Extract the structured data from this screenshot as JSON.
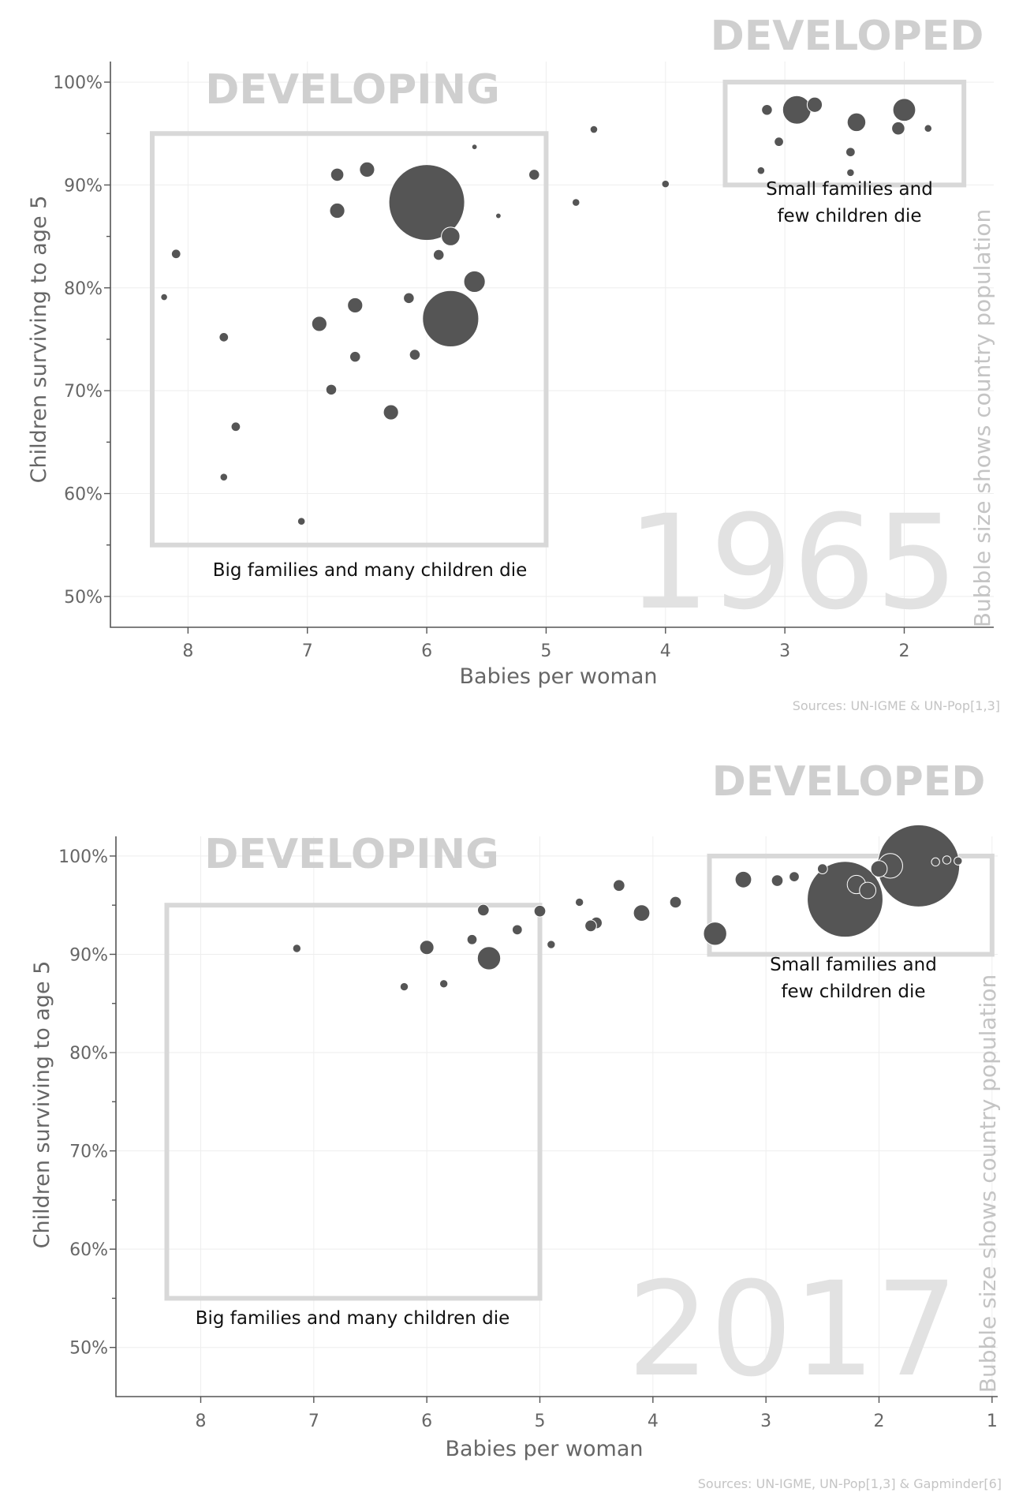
{
  "charts": [
    {
      "year_label": "1965",
      "sources": "Sources: UN-IGME & UN-Pop[1,3]",
      "side_note": "Bubble size shows country population",
      "x_ticks": [
        {
          "value": 8,
          "label": "8"
        },
        {
          "value": 7,
          "label": "7"
        },
        {
          "value": 6,
          "label": "6"
        },
        {
          "value": 5,
          "label": "5"
        },
        {
          "value": 4,
          "label": "4"
        },
        {
          "value": 3,
          "label": "3"
        },
        {
          "value": 2,
          "label": "2"
        }
      ],
      "y_ticks": [
        {
          "value": 50,
          "label": "50%"
        },
        {
          "value": 60,
          "label": "60%"
        },
        {
          "value": 70,
          "label": "70%"
        },
        {
          "value": 80,
          "label": "80%"
        },
        {
          "value": 90,
          "label": "90%"
        },
        {
          "value": 100,
          "label": "100%"
        }
      ],
      "developing": {
        "label": "DEVELOPING",
        "note": "Big families and many children die"
      },
      "developed": {
        "label": "DEVELOPED",
        "note_line1": "Small families and",
        "note_line2": "few children die"
      }
    },
    {
      "year_label": "2017",
      "sources": "Sources: UN-IGME, UN-Pop[1,3] & Gapminder[6]",
      "side_note": "Bubble size shows country population",
      "x_ticks": [
        {
          "value": 8,
          "label": "8"
        },
        {
          "value": 7,
          "label": "7"
        },
        {
          "value": 6,
          "label": "6"
        },
        {
          "value": 5,
          "label": "5"
        },
        {
          "value": 4,
          "label": "4"
        },
        {
          "value": 3,
          "label": "3"
        },
        {
          "value": 2,
          "label": "2"
        },
        {
          "value": 1,
          "label": "1"
        }
      ],
      "y_ticks": [
        {
          "value": 50,
          "label": "50%"
        },
        {
          "value": 60,
          "label": "60%"
        },
        {
          "value": 70,
          "label": "70%"
        },
        {
          "value": 80,
          "label": "80%"
        },
        {
          "value": 90,
          "label": "90%"
        },
        {
          "value": 100,
          "label": "100%"
        }
      ],
      "developing": {
        "label": "DEVELOPING",
        "note": "Big families and many children die"
      },
      "developed": {
        "label": "DEVELOPED",
        "note_line1": "Small families and",
        "note_line2": "few children die"
      }
    }
  ],
  "chart_data": [
    {
      "type": "scatter",
      "title": "1965",
      "xlabel": "Babies per woman",
      "ylabel": "Children surviving to age 5",
      "xlim": [
        8.65,
        1.25
      ],
      "ylim": [
        47,
        102
      ],
      "x_reversed": true,
      "size_encodes": "country population",
      "grid": true,
      "regions": [
        {
          "label": "DEVELOPING",
          "x": [
            8.3,
            5.0
          ],
          "y": [
            55,
            95
          ],
          "note": "Big families and many children die"
        },
        {
          "label": "DEVELOPED",
          "x": [
            3.5,
            1.5
          ],
          "y": [
            90,
            100
          ],
          "note": "Small families and few children die"
        }
      ],
      "points": [
        {
          "x": 6.0,
          "y": 88.3,
          "size": 100
        },
        {
          "x": 5.8,
          "y": 77.0,
          "size": 55
        },
        {
          "x": 2.9,
          "y": 97.3,
          "size": 14
        },
        {
          "x": 2.0,
          "y": 97.3,
          "size": 9
        },
        {
          "x": 2.4,
          "y": 96.1,
          "size": 6
        },
        {
          "x": 5.6,
          "y": 80.6,
          "size": 8
        },
        {
          "x": 5.8,
          "y": 85.0,
          "size": 6
        },
        {
          "x": 6.5,
          "y": 91.5,
          "size": 4
        },
        {
          "x": 6.75,
          "y": 87.5,
          "size": 4
        },
        {
          "x": 6.75,
          "y": 91.0,
          "size": 3
        },
        {
          "x": 6.6,
          "y": 78.3,
          "size": 4
        },
        {
          "x": 6.3,
          "y": 67.9,
          "size": 4
        },
        {
          "x": 6.9,
          "y": 76.5,
          "size": 4
        },
        {
          "x": 6.8,
          "y": 70.1,
          "size": 2
        },
        {
          "x": 6.6,
          "y": 73.3,
          "size": 2
        },
        {
          "x": 5.9,
          "y": 83.2,
          "size": 2
        },
        {
          "x": 6.15,
          "y": 79.0,
          "size": 2
        },
        {
          "x": 6.1,
          "y": 73.5,
          "size": 2
        },
        {
          "x": 7.7,
          "y": 75.2,
          "size": 1.5
        },
        {
          "x": 7.6,
          "y": 66.5,
          "size": 1.5
        },
        {
          "x": 8.1,
          "y": 83.3,
          "size": 1.5
        },
        {
          "x": 7.7,
          "y": 61.6,
          "size": 1
        },
        {
          "x": 7.05,
          "y": 57.3,
          "size": 1
        },
        {
          "x": 8.2,
          "y": 79.1,
          "size": 0.8
        },
        {
          "x": 5.1,
          "y": 91.0,
          "size": 2
        },
        {
          "x": 4.6,
          "y": 95.4,
          "size": 1
        },
        {
          "x": 4.0,
          "y": 90.1,
          "size": 1
        },
        {
          "x": 3.2,
          "y": 91.4,
          "size": 1
        },
        {
          "x": 2.05,
          "y": 95.5,
          "size": 3
        },
        {
          "x": 1.8,
          "y": 95.5,
          "size": 1
        },
        {
          "x": 2.75,
          "y": 97.8,
          "size": 4
        },
        {
          "x": 2.45,
          "y": 93.2,
          "size": 1.5
        },
        {
          "x": 2.45,
          "y": 91.2,
          "size": 1
        },
        {
          "x": 3.05,
          "y": 94.2,
          "size": 1.5
        },
        {
          "x": 3.15,
          "y": 97.3,
          "size": 2
        },
        {
          "x": 5.6,
          "y": 93.7,
          "size": 0.5
        },
        {
          "x": 4.75,
          "y": 88.3,
          "size": 1
        },
        {
          "x": 5.4,
          "y": 87.0,
          "size": 0.5
        }
      ]
    },
    {
      "type": "scatter",
      "title": "2017",
      "xlabel": "Babies per woman",
      "ylabel": "Children surviving to age 5",
      "xlim": [
        8.75,
        0.95
      ],
      "ylim": [
        45,
        102
      ],
      "x_reversed": true,
      "size_encodes": "country population",
      "grid": true,
      "regions": [
        {
          "label": "DEVELOPING",
          "x": [
            8.3,
            5.0
          ],
          "y": [
            55,
            95
          ],
          "note": "Big families and many children die"
        },
        {
          "label": "DEVELOPED",
          "x": [
            3.5,
            1.0
          ],
          "y": [
            90,
            100
          ],
          "note": "Small families and few children die"
        }
      ],
      "points": [
        {
          "x": 1.65,
          "y": 99.0,
          "size": 100
        },
        {
          "x": 2.3,
          "y": 95.6,
          "size": 85
        },
        {
          "x": 5.45,
          "y": 89.6,
          "size": 8
        },
        {
          "x": 3.45,
          "y": 92.1,
          "size": 8
        },
        {
          "x": 4.1,
          "y": 94.2,
          "size": 4
        },
        {
          "x": 6.0,
          "y": 90.7,
          "size": 3
        },
        {
          "x": 3.2,
          "y": 97.6,
          "size": 4
        },
        {
          "x": 1.9,
          "y": 99.0,
          "size": 9
        },
        {
          "x": 2.2,
          "y": 97.1,
          "size": 5
        },
        {
          "x": 2.1,
          "y": 96.5,
          "size": 4
        },
        {
          "x": 2.0,
          "y": 98.7,
          "size": 4
        },
        {
          "x": 7.15,
          "y": 90.6,
          "size": 1
        },
        {
          "x": 6.2,
          "y": 86.7,
          "size": 1
        },
        {
          "x": 5.85,
          "y": 87.0,
          "size": 1
        },
        {
          "x": 5.0,
          "y": 94.4,
          "size": 2
        },
        {
          "x": 5.2,
          "y": 92.5,
          "size": 1.5
        },
        {
          "x": 5.5,
          "y": 94.5,
          "size": 2
        },
        {
          "x": 5.6,
          "y": 91.5,
          "size": 1.5
        },
        {
          "x": 4.5,
          "y": 93.2,
          "size": 2
        },
        {
          "x": 4.3,
          "y": 97.0,
          "size": 2
        },
        {
          "x": 3.8,
          "y": 95.3,
          "size": 2
        },
        {
          "x": 4.55,
          "y": 92.9,
          "size": 2
        },
        {
          "x": 4.9,
          "y": 91.0,
          "size": 1
        },
        {
          "x": 4.65,
          "y": 95.3,
          "size": 1
        },
        {
          "x": 2.9,
          "y": 97.5,
          "size": 2
        },
        {
          "x": 2.75,
          "y": 97.9,
          "size": 1.5
        },
        {
          "x": 2.5,
          "y": 98.7,
          "size": 1.5
        },
        {
          "x": 1.4,
          "y": 99.6,
          "size": 1
        },
        {
          "x": 1.3,
          "y": 99.5,
          "size": 1
        },
        {
          "x": 1.5,
          "y": 99.4,
          "size": 1
        }
      ]
    }
  ]
}
